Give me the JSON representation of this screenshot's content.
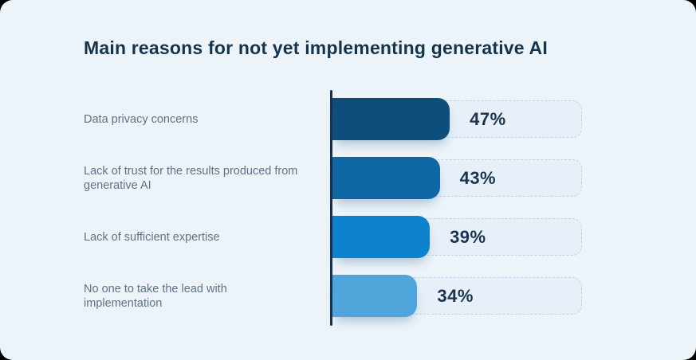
{
  "title": "Main reasons for not yet implementing generative AI",
  "chart_data": {
    "type": "bar",
    "orientation": "horizontal",
    "title": "Main reasons for not yet implementing generative AI",
    "categories": [
      "Data privacy concerns",
      "Lack of trust for the results produced from generative AI",
      "Lack of sufficient expertise",
      "No one to take the lead with implementation"
    ],
    "values": [
      47,
      43,
      39,
      34
    ],
    "value_labels": [
      "47%",
      "43%",
      "39%",
      "34%"
    ],
    "bar_colors": [
      "#0e4e7d",
      "#0f67a5",
      "#0e83cd",
      "#50a6db"
    ],
    "xlim": [
      0,
      100
    ],
    "grid": false,
    "legend_position": "none"
  },
  "colors": {
    "card_background": "#edf4f9",
    "outer_background": "#000000",
    "axis": "#16304f",
    "category_label": "#5f7189",
    "value_label": "#1b3350",
    "track_fill": "#e7f0f8",
    "track_border": "#b9d6ee"
  }
}
